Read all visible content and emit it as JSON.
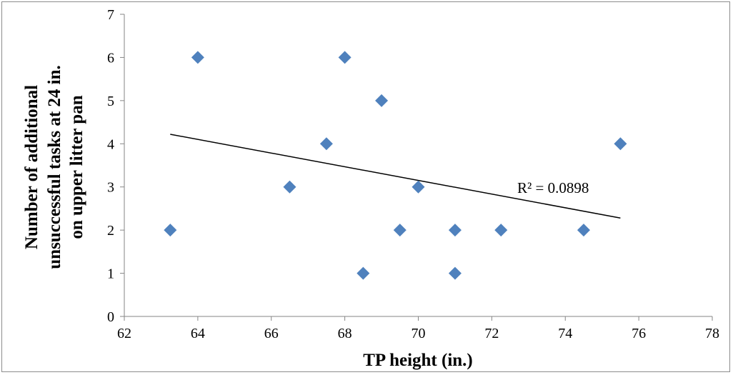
{
  "chart_data": {
    "type": "scatter",
    "xlabel": "TP height (in.)",
    "ylabel_lines": [
      "Number of additional",
      "unsuccessful tasks at 24 in.",
      "on upper litter pan"
    ],
    "xlim": [
      62,
      78
    ],
    "ylim": [
      0,
      7
    ],
    "x_ticks": [
      62,
      64,
      66,
      68,
      70,
      72,
      74,
      76,
      78
    ],
    "y_ticks": [
      0,
      1,
      2,
      3,
      4,
      5,
      6,
      7
    ],
    "grid": false,
    "legend": "none",
    "marker_color": "#4f81bd",
    "marker_shape": "diamond",
    "points": [
      {
        "x": 63.25,
        "y": 2
      },
      {
        "x": 64,
        "y": 6
      },
      {
        "x": 66.5,
        "y": 3
      },
      {
        "x": 67.5,
        "y": 4
      },
      {
        "x": 68,
        "y": 6
      },
      {
        "x": 68.5,
        "y": 1
      },
      {
        "x": 69,
        "y": 5
      },
      {
        "x": 69.5,
        "y": 2
      },
      {
        "x": 70,
        "y": 3
      },
      {
        "x": 71,
        "y": 2
      },
      {
        "x": 71,
        "y": 1
      },
      {
        "x": 72.25,
        "y": 2
      },
      {
        "x": 74.5,
        "y": 2
      },
      {
        "x": 75.5,
        "y": 4
      }
    ],
    "trendline": {
      "type": "linear",
      "color": "#000000",
      "x": [
        63.25,
        75.5
      ],
      "y": [
        4.22,
        2.28
      ],
      "label": "R² = 0.0898"
    }
  }
}
